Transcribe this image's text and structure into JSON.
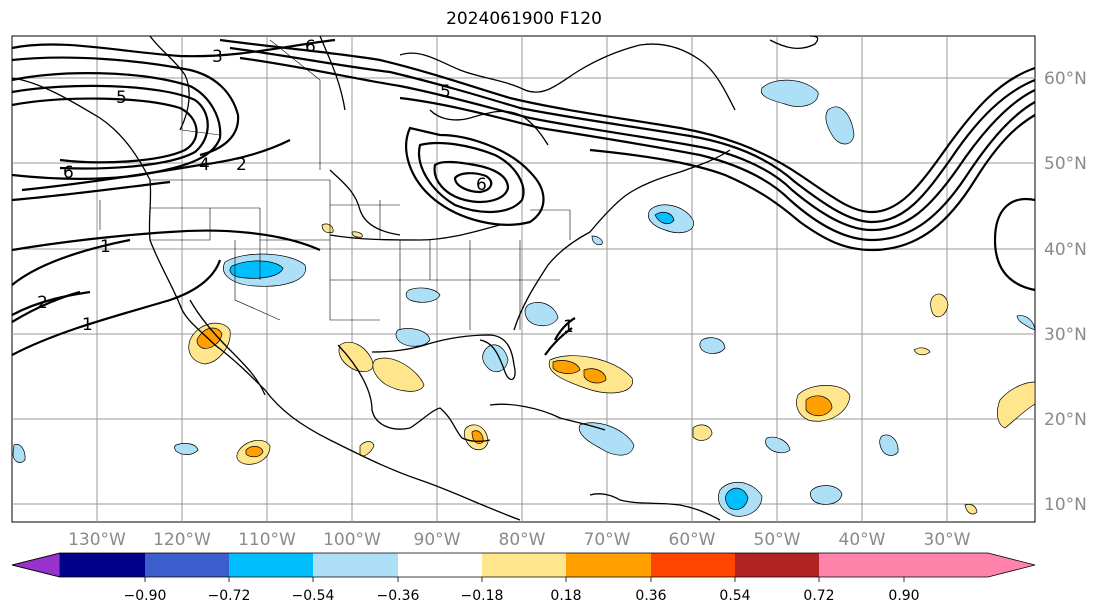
{
  "title": "2024061900 F120",
  "map": {
    "lon_labels": [
      "130°W",
      "120°W",
      "110°W",
      "100°W",
      "90°W",
      "80°W",
      "70°W",
      "60°W",
      "50°W",
      "40°W",
      "30°W"
    ],
    "lat_labels": [
      "60°N",
      "50°N",
      "40°N",
      "30°N",
      "20°N",
      "10°N"
    ],
    "contour_labels": [
      "6",
      "3",
      "5",
      "5",
      "6",
      "4",
      "2",
      "1",
      "2",
      "1",
      "1",
      "6"
    ]
  },
  "colorbar": {
    "tick_labels": [
      "−0.90",
      "−0.72",
      "−0.54",
      "−0.36",
      "−0.18",
      "0.18",
      "0.36",
      "0.54",
      "0.72",
      "0.90"
    ],
    "colors": [
      "#9932CC",
      "#00008B",
      "#3A5FCD",
      "#00BFFF",
      "#ADDFF7",
      "#FFFFFF",
      "#FFE68C",
      "#FFA000",
      "#FF4500",
      "#B22222",
      "#FF82AB"
    ]
  }
}
